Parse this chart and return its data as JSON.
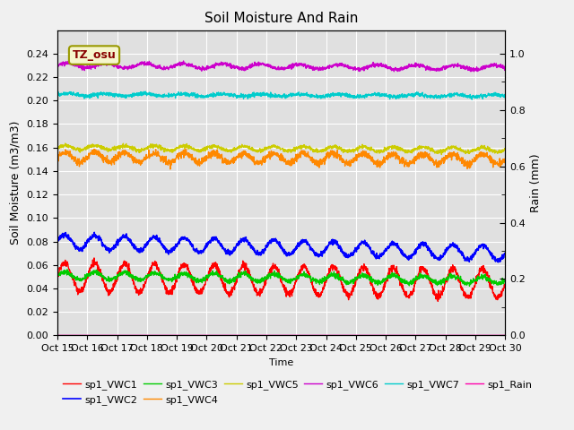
{
  "title": "Soil Moisture And Rain",
  "xlabel": "Time",
  "ylabel_left": "Soil Moisture (m3/m3)",
  "ylabel_right": "Rain (mm)",
  "ylim_left": [
    0.0,
    0.26
  ],
  "ylim_right": [
    0.0,
    1.083
  ],
  "xtick_labels": [
    "Oct 15",
    "Oct 16",
    "Oct 17",
    "Oct 18",
    "Oct 19",
    "Oct 20",
    "Oct 21",
    "Oct 22",
    "Oct 23",
    "Oct 24",
    "Oct 25",
    "Oct 26",
    "Oct 27",
    "Oct 28",
    "Oct 29",
    "Oct 30"
  ],
  "ytick_left": [
    0.0,
    0.02,
    0.04,
    0.06,
    0.08,
    0.1,
    0.12,
    0.14,
    0.16,
    0.18,
    0.2,
    0.22,
    0.24
  ],
  "ytick_right": [
    0.0,
    0.2,
    0.4,
    0.6,
    0.8,
    1.0
  ],
  "annotation_text": "TZ_osu",
  "series_order": [
    "sp1_VWC1",
    "sp1_VWC2",
    "sp1_VWC3",
    "sp1_VWC4",
    "sp1_VWC5",
    "sp1_VWC6",
    "sp1_VWC7",
    "sp1_Rain"
  ],
  "series": {
    "sp1_VWC1": {
      "color": "#ff0000",
      "base": 0.05,
      "amp": 0.012,
      "period": 1.0,
      "trend": -0.006,
      "noise": 0.0015,
      "lw": 1.0
    },
    "sp1_VWC2": {
      "color": "#0000ff",
      "base": 0.08,
      "amp": 0.006,
      "period": 1.0,
      "trend": -0.01,
      "noise": 0.001,
      "lw": 1.2
    },
    "sp1_VWC3": {
      "color": "#00cc00",
      "base": 0.051,
      "amp": 0.003,
      "period": 1.0,
      "trend": -0.004,
      "noise": 0.001,
      "lw": 1.0
    },
    "sp1_VWC4": {
      "color": "#ff8800",
      "base": 0.152,
      "amp": 0.004,
      "period": 1.0,
      "trend": -0.002,
      "noise": 0.0015,
      "lw": 1.0
    },
    "sp1_VWC5": {
      "color": "#cccc00",
      "base": 0.16,
      "amp": 0.002,
      "period": 1.0,
      "trend": -0.002,
      "noise": 0.0008,
      "lw": 1.0
    },
    "sp1_VWC6": {
      "color": "#cc00cc",
      "base": 0.23,
      "amp": 0.002,
      "period": 1.3,
      "trend": -0.002,
      "noise": 0.0008,
      "lw": 1.0
    },
    "sp1_VWC7": {
      "color": "#00cccc",
      "base": 0.205,
      "amp": 0.001,
      "period": 1.3,
      "trend": -0.001,
      "noise": 0.0008,
      "lw": 1.0
    },
    "sp1_Rain": {
      "color": "#ff00aa",
      "base": 0.0,
      "amp": 0.0,
      "period": 0.0,
      "trend": 0.0,
      "noise": 0.0,
      "lw": 1.0
    }
  },
  "legend_row1": [
    "sp1_VWC1",
    "sp1_VWC2",
    "sp1_VWC3",
    "sp1_VWC4",
    "sp1_VWC5",
    "sp1_VWC6"
  ],
  "legend_row2": [
    "sp1_VWC7",
    "sp1_Rain"
  ],
  "bg_color": "#e0e0e0",
  "fig_bg": "#f0f0f0",
  "grid_color": "#ffffff",
  "tick_fontsize": 8,
  "label_fontsize": 9,
  "title_fontsize": 11
}
